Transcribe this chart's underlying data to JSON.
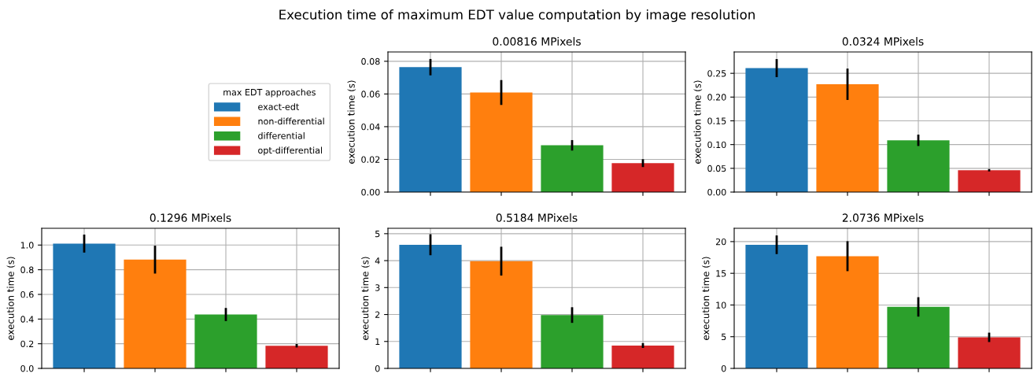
{
  "chart_data": [
    {
      "type": "bar",
      "title": "0.00816 MPixels",
      "ylabel": "execution time (s)",
      "legend_title": "max EDT approaches",
      "legend": "left",
      "grid": true,
      "tick_labels": "y",
      "annotations": [
        "Execution time of maximum EDT value computation by image resolution"
      ],
      "categories": [
        null,
        null,
        null,
        null
      ],
      "ylim": [
        0,
        0.0857
      ],
      "yticks": [
        {
          "value": 0,
          "label": "0.00"
        },
        0.02,
        0.04,
        0.06,
        0.08
      ],
      "series": [
        {
          "name": "exact-edt",
          "color": "#1f77b4",
          "values": [
            0.0764,
            null,
            null,
            null
          ],
          "errors": [
            0.005,
            null,
            null,
            null
          ]
        },
        {
          "name": "non-differential",
          "color": "#ff7f0e",
          "values": [
            null,
            0.0609,
            null,
            null
          ],
          "errors": [
            null,
            0.0076,
            null,
            null
          ]
        },
        {
          "name": "differential",
          "color": "#2ca02c",
          "values": [
            null,
            null,
            0.0286,
            null
          ],
          "errors": [
            null,
            null,
            0.0032,
            null
          ]
        },
        {
          "name": "opt-differential",
          "color": "#d62728",
          "values": [
            null,
            null,
            null,
            0.0177
          ],
          "errors": [
            null,
            null,
            null,
            0.0024
          ]
        }
      ]
    },
    {
      "type": "bar",
      "title": "0.0324 MPixels",
      "ylabel": "execution time (s)",
      "grid": true,
      "tick_labels": "y",
      "categories": [
        null,
        null,
        null,
        null
      ],
      "ylim": [
        0,
        0.295
      ],
      "yticks": [
        {
          "value": 0,
          "label": "0.00"
        },
        0.05,
        {
          "value": 0.1,
          "label": "0.10"
        },
        0.15,
        {
          "value": 0.2,
          "label": "0.20"
        },
        0.25
      ],
      "series": [
        {
          "color": "#1f77b4",
          "values": [
            0.261,
            null,
            null,
            null
          ],
          "errors": [
            0.019,
            null,
            null,
            null
          ]
        },
        {
          "color": "#ff7f0e",
          "values": [
            null,
            0.227,
            null,
            null
          ],
          "errors": [
            null,
            0.033,
            null,
            null
          ]
        },
        {
          "color": "#2ca02c",
          "values": [
            null,
            null,
            0.109,
            null
          ],
          "errors": [
            null,
            null,
            0.012,
            null
          ]
        },
        {
          "color": "#d62728",
          "values": [
            null,
            null,
            null,
            0.046
          ],
          "errors": [
            null,
            null,
            null,
            0.0025
          ]
        }
      ]
    },
    {
      "type": "bar",
      "title": "0.1296 MPixels",
      "ylabel": "execution time (s)",
      "grid": true,
      "tick_labels": "y",
      "categories": [
        null,
        null,
        null,
        null
      ],
      "ylim": [
        0,
        1.136
      ],
      "yticks": [
        {
          "value": 0,
          "label": "0.0"
        },
        0.2,
        0.4,
        0.6,
        0.8,
        {
          "value": 1,
          "label": "1.0"
        }
      ],
      "series": [
        {
          "color": "#1f77b4",
          "values": [
            1.012,
            null,
            null,
            null
          ],
          "errors": [
            0.073,
            null,
            null,
            null
          ]
        },
        {
          "color": "#ff7f0e",
          "values": [
            null,
            0.882,
            null,
            null
          ],
          "errors": [
            null,
            0.113,
            null,
            null
          ]
        },
        {
          "color": "#2ca02c",
          "values": [
            null,
            null,
            0.437,
            null
          ],
          "errors": [
            null,
            null,
            0.053,
            null
          ]
        },
        {
          "color": "#d62728",
          "values": [
            null,
            null,
            null,
            0.184
          ],
          "errors": [
            null,
            null,
            null,
            0.014
          ]
        }
      ]
    },
    {
      "type": "bar",
      "title": "0.5184 MPixels",
      "ylabel": "execution time (s)",
      "grid": true,
      "tick_labels": "y",
      "categories": [
        null,
        null,
        null,
        null
      ],
      "ylim": [
        0,
        5.2
      ],
      "yticks": [
        0,
        1,
        2,
        3,
        4,
        5
      ],
      "series": [
        {
          "color": "#1f77b4",
          "values": [
            4.59,
            null,
            null,
            null
          ],
          "errors": [
            0.39,
            null,
            null,
            null
          ]
        },
        {
          "color": "#ff7f0e",
          "values": [
            null,
            3.98,
            null,
            null
          ],
          "errors": [
            null,
            0.535,
            null,
            null
          ]
        },
        {
          "color": "#2ca02c",
          "values": [
            null,
            null,
            1.98,
            null
          ],
          "errors": [
            null,
            null,
            0.29,
            null
          ]
        },
        {
          "color": "#d62728",
          "values": [
            null,
            null,
            null,
            0.85
          ],
          "errors": [
            null,
            null,
            null,
            0.09
          ]
        }
      ]
    },
    {
      "type": "bar",
      "title": "2.0736 MPixels",
      "ylabel": "execution time (s)",
      "grid": true,
      "tick_labels": "y",
      "categories": [
        null,
        null,
        null,
        null
      ],
      "ylim": [
        0,
        22.1
      ],
      "yticks": [
        0,
        5,
        10,
        15,
        20
      ],
      "series": [
        {
          "color": "#1f77b4",
          "values": [
            19.5,
            null,
            null,
            null
          ],
          "errors": [
            1.47,
            null,
            null,
            null
          ]
        },
        {
          "color": "#ff7f0e",
          "values": [
            null,
            17.7,
            null,
            null
          ],
          "errors": [
            null,
            2.36,
            null,
            null
          ]
        },
        {
          "color": "#2ca02c",
          "values": [
            null,
            null,
            9.7,
            null
          ],
          "errors": [
            null,
            null,
            1.53,
            null
          ]
        },
        {
          "color": "#d62728",
          "values": [
            null,
            null,
            null,
            4.9
          ],
          "errors": [
            null,
            null,
            null,
            0.74
          ]
        }
      ]
    }
  ]
}
